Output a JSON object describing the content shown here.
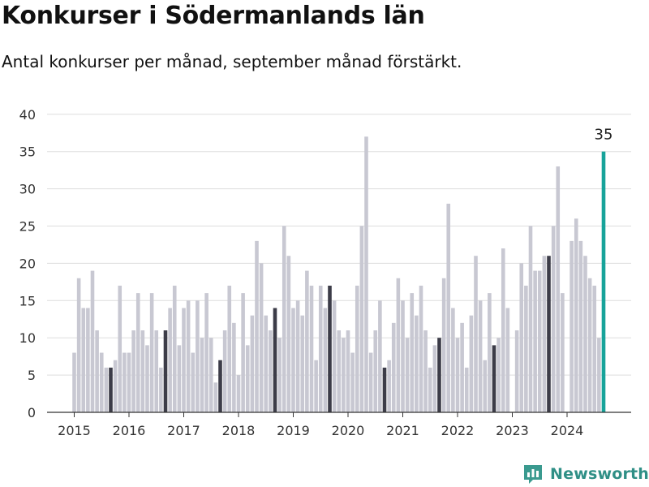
{
  "header": {
    "title": "Konkurser i Södermanlands län",
    "subtitle": "Antal konkurser per månad, september månad förstärkt."
  },
  "brand": {
    "name": "Newsworthy",
    "icon": "newsworthy-logo-icon",
    "color": "#3a9a8f"
  },
  "colors": {
    "bar": "#c8c8d2",
    "highlight": "#3c3c48",
    "latest": "#17a39a",
    "grid": "#dddddd",
    "axis": "#333333"
  },
  "chart_data": {
    "type": "bar",
    "title": "Konkurser i Södermanlands län",
    "subtitle": "Antal konkurser per månad, september månad förstärkt.",
    "xlabel": "",
    "ylabel": "",
    "ylim": [
      0,
      40
    ],
    "yticks": [
      0,
      5,
      10,
      15,
      20,
      25,
      30,
      35,
      40
    ],
    "xticks": [
      "2015",
      "2016",
      "2017",
      "2018",
      "2019",
      "2020",
      "2021",
      "2022",
      "2023",
      "2024"
    ],
    "grid": true,
    "start": "2015-01",
    "end": "2024-09",
    "highlight_month": "september",
    "latest_label": "35",
    "values": [
      8,
      18,
      14,
      14,
      19,
      11,
      8,
      6,
      6,
      7,
      17,
      8,
      8,
      11,
      16,
      11,
      9,
      16,
      11,
      6,
      11,
      14,
      17,
      9,
      14,
      15,
      8,
      15,
      10,
      16,
      10,
      4,
      7,
      11,
      17,
      12,
      5,
      16,
      9,
      13,
      23,
      20,
      13,
      11,
      14,
      10,
      25,
      21,
      14,
      15,
      13,
      19,
      17,
      7,
      17,
      14,
      17,
      15,
      11,
      10,
      11,
      8,
      17,
      25,
      37,
      8,
      11,
      15,
      6,
      7,
      12,
      18,
      15,
      10,
      16,
      13,
      17,
      11,
      6,
      9,
      10,
      18,
      28,
      14,
      10,
      12,
      6,
      13,
      21,
      15,
      7,
      16,
      9,
      10,
      22,
      14,
      0,
      11,
      20,
      17,
      25,
      19,
      19,
      21,
      21,
      25,
      33,
      16,
      0,
      23,
      26,
      23,
      21,
      18,
      17,
      10,
      35
    ]
  }
}
